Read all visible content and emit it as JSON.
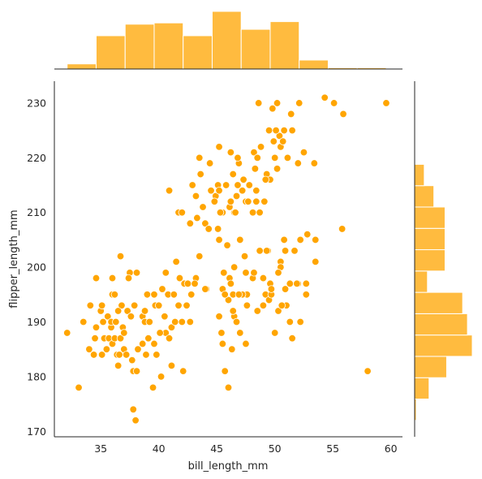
{
  "colors": {
    "point": "#FFA500",
    "point_edge": "#ffffff",
    "hist": "#FFBB3F",
    "hist_edge": "#ffffff",
    "axis": "#262626"
  },
  "chart_data": {
    "type": "scatter",
    "xlabel": "bill_length_mm",
    "ylabel": "flipper_length_mm",
    "xlim": [
      31,
      61
    ],
    "ylim": [
      169,
      234
    ],
    "xticks": [
      35,
      40,
      45,
      50,
      55,
      60
    ],
    "yticks": [
      170,
      180,
      190,
      200,
      210,
      220,
      230
    ],
    "marginal_x": {
      "type": "histogram",
      "bin_edges": [
        32.1,
        34.6,
        37.1,
        39.6,
        42.1,
        44.6,
        47.1,
        49.6,
        52.1,
        54.6,
        57.1,
        59.6
      ],
      "counts": [
        4,
        26,
        35,
        36,
        26,
        45,
        31,
        37,
        7,
        1,
        1
      ]
    },
    "marginal_y": {
      "type": "histogram",
      "bin_edges": [
        172,
        175.9,
        179.8,
        183.7,
        187.6,
        191.5,
        195.4,
        199.3,
        203.2,
        207.1,
        211,
        214.9,
        218.8,
        222.7,
        226.6,
        230.5
      ],
      "counts": [
        1,
        9,
        20,
        36,
        33,
        30,
        8,
        19,
        19,
        19,
        12,
        6,
        0,
        0,
        0
      ]
    },
    "points": [
      [
        32.1,
        188
      ],
      [
        33.1,
        178
      ],
      [
        33.5,
        190
      ],
      [
        34.0,
        185
      ],
      [
        34.1,
        193
      ],
      [
        34.4,
        184
      ],
      [
        34.5,
        187
      ],
      [
        34.6,
        189
      ],
      [
        34.6,
        198
      ],
      [
        35.0,
        192
      ],
      [
        35.1,
        193
      ],
      [
        35.2,
        190
      ],
      [
        35.3,
        187
      ],
      [
        35.5,
        185
      ],
      [
        35.6,
        191
      ],
      [
        35.7,
        187
      ],
      [
        35.9,
        189
      ],
      [
        35.9,
        190
      ],
      [
        36.0,
        186
      ],
      [
        36.0,
        195
      ],
      [
        36.2,
        187
      ],
      [
        36.2,
        195
      ],
      [
        36.3,
        190
      ],
      [
        36.4,
        184
      ],
      [
        36.5,
        182
      ],
      [
        36.6,
        184
      ],
      [
        36.7,
        187
      ],
      [
        36.8,
        193
      ],
      [
        36.9,
        189
      ],
      [
        37.0,
        185
      ],
      [
        37.2,
        184
      ],
      [
        37.3,
        192
      ],
      [
        37.5,
        199
      ],
      [
        37.6,
        191
      ],
      [
        37.7,
        183
      ],
      [
        37.8,
        174
      ],
      [
        37.8,
        181
      ],
      [
        37.9,
        193
      ],
      [
        38.0,
        172
      ],
      [
        38.1,
        181
      ],
      [
        38.2,
        185
      ],
      [
        38.6,
        191
      ],
      [
        38.8,
        190
      ],
      [
        39.0,
        195
      ],
      [
        39.2,
        190
      ],
      [
        39.5,
        178
      ],
      [
        39.6,
        186
      ],
      [
        39.7,
        193
      ],
      [
        40.0,
        193
      ],
      [
        40.3,
        196
      ],
      [
        40.6,
        188
      ],
      [
        40.9,
        187
      ],
      [
        41.1,
        189
      ],
      [
        41.4,
        190
      ],
      [
        41.7,
        193
      ],
      [
        42.0,
        190
      ],
      [
        42.2,
        197
      ],
      [
        42.5,
        197
      ],
      [
        42.8,
        195
      ],
      [
        43.2,
        198
      ],
      [
        36.0,
        198
      ],
      [
        36.7,
        202
      ],
      [
        37.4,
        198
      ],
      [
        38.1,
        199
      ],
      [
        38.6,
        186
      ],
      [
        38.8,
        192
      ],
      [
        39.1,
        187
      ],
      [
        39.6,
        195
      ],
      [
        40.1,
        188
      ],
      [
        40.5,
        191
      ],
      [
        40.8,
        195
      ],
      [
        41.1,
        182
      ],
      [
        41.5,
        201
      ],
      [
        41.8,
        198
      ],
      [
        42.1,
        181
      ],
      [
        42.7,
        190
      ],
      [
        43.1,
        197
      ],
      [
        44.1,
        196
      ],
      [
        45.5,
        196
      ],
      [
        46.0,
        194
      ],
      [
        47.6,
        195
      ],
      [
        48.1,
        198
      ],
      [
        49.2,
        195
      ],
      [
        50.5,
        201
      ],
      [
        50.9,
        196
      ],
      [
        51.5,
        187
      ],
      [
        52.0,
        197
      ],
      [
        52.7,
        197
      ],
      [
        53.5,
        201
      ],
      [
        40.2,
        180
      ],
      [
        39.8,
        184
      ],
      [
        40.6,
        199
      ],
      [
        37.0,
        188
      ],
      [
        38.9,
        184
      ],
      [
        36.5,
        192
      ],
      [
        35.1,
        184
      ],
      [
        46.5,
        191
      ],
      [
        46.4,
        195
      ],
      [
        48.7,
        203
      ],
      [
        47.2,
        195
      ],
      [
        50.8,
        205
      ],
      [
        45.6,
        199
      ],
      [
        46.7,
        190
      ],
      [
        49.5,
        194
      ],
      [
        46.1,
        198
      ],
      [
        45.2,
        191
      ],
      [
        48.5,
        192
      ],
      [
        49.0,
        198
      ],
      [
        49.7,
        195
      ],
      [
        50.0,
        188
      ],
      [
        50.3,
        192
      ],
      [
        51.3,
        190
      ],
      [
        52.2,
        190
      ],
      [
        45.5,
        186
      ],
      [
        47.5,
        186
      ],
      [
        46.3,
        185
      ],
      [
        45.7,
        195
      ],
      [
        51.0,
        193
      ],
      [
        49.6,
        197
      ],
      [
        52.8,
        206
      ],
      [
        40.9,
        214
      ],
      [
        41.7,
        210
      ],
      [
        43.2,
        213
      ],
      [
        43.3,
        209
      ],
      [
        43.6,
        217
      ],
      [
        44.0,
        208
      ],
      [
        44.4,
        219
      ],
      [
        44.9,
        213
      ],
      [
        45.1,
        215
      ],
      [
        45.5,
        210
      ],
      [
        45.8,
        215
      ],
      [
        46.1,
        211
      ],
      [
        46.4,
        217
      ],
      [
        46.5,
        210
      ],
      [
        46.8,
        215
      ],
      [
        47.2,
        214
      ],
      [
        47.5,
        212
      ],
      [
        47.8,
        215
      ],
      [
        48.1,
        210
      ],
      [
        48.2,
        221
      ],
      [
        48.4,
        212
      ],
      [
        48.5,
        220
      ],
      [
        48.7,
        210
      ],
      [
        49.1,
        212
      ],
      [
        49.3,
        217
      ],
      [
        49.6,
        216
      ],
      [
        49.8,
        229
      ],
      [
        50.0,
        220
      ],
      [
        50.2,
        218
      ],
      [
        50.4,
        224
      ],
      [
        50.5,
        222
      ],
      [
        50.8,
        225
      ],
      [
        51.1,
        220
      ],
      [
        51.5,
        225
      ],
      [
        52.1,
        230
      ],
      [
        52.5,
        221
      ],
      [
        53.4,
        219
      ],
      [
        54.3,
        231
      ],
      [
        55.1,
        230
      ],
      [
        55.9,
        228
      ],
      [
        59.6,
        230
      ],
      [
        45.2,
        222
      ],
      [
        46.2,
        221
      ],
      [
        47.3,
        216
      ],
      [
        48.6,
        230
      ],
      [
        49.9,
        223
      ],
      [
        50.7,
        223
      ],
      [
        46.9,
        219
      ],
      [
        42.9,
        215
      ],
      [
        44.5,
        214
      ],
      [
        45.3,
        210
      ],
      [
        46.6,
        210
      ],
      [
        49.2,
        216
      ],
      [
        48.8,
        222
      ],
      [
        50.2,
        230
      ],
      [
        47.7,
        212
      ],
      [
        45.1,
        207
      ],
      [
        44.8,
        212
      ],
      [
        43.5,
        220
      ],
      [
        42.7,
        208
      ],
      [
        46.8,
        220
      ],
      [
        49.5,
        225
      ],
      [
        46.2,
        212
      ],
      [
        47.0,
        205
      ],
      [
        48.3,
        218
      ],
      [
        45.9,
        204
      ],
      [
        50.1,
        225
      ],
      [
        51.4,
        228
      ],
      [
        52.0,
        219
      ],
      [
        44.3,
        207
      ],
      [
        43.8,
        211
      ],
      [
        42.0,
        210
      ],
      [
        45.2,
        214
      ],
      [
        46.7,
        213
      ],
      [
        48.4,
        214
      ],
      [
        49.4,
        203
      ],
      [
        50.5,
        200
      ],
      [
        51.7,
        203
      ],
      [
        52.2,
        205
      ],
      [
        53.5,
        205
      ],
      [
        55.8,
        207
      ],
      [
        58.0,
        181
      ],
      [
        45.7,
        181
      ],
      [
        46.0,
        178
      ],
      [
        47.0,
        188
      ],
      [
        45.4,
        188
      ],
      [
        46.4,
        192
      ],
      [
        47.6,
        193
      ],
      [
        45.2,
        205
      ],
      [
        46.2,
        197
      ],
      [
        46.5,
        200
      ],
      [
        47.4,
        202
      ],
      [
        49.0,
        193
      ],
      [
        50.3,
        199
      ],
      [
        50.9,
        203
      ],
      [
        51.3,
        197
      ],
      [
        52.7,
        195
      ],
      [
        50.6,
        193
      ],
      [
        49.7,
        196
      ],
      [
        49.3,
        203
      ],
      [
        47.5,
        199
      ],
      [
        46.9,
        195
      ],
      [
        48.2,
        199
      ],
      [
        51.9,
        197
      ],
      [
        43.5,
        202
      ],
      [
        44.0,
        196
      ],
      [
        42.4,
        193
      ],
      [
        41.3,
        195
      ]
    ]
  }
}
